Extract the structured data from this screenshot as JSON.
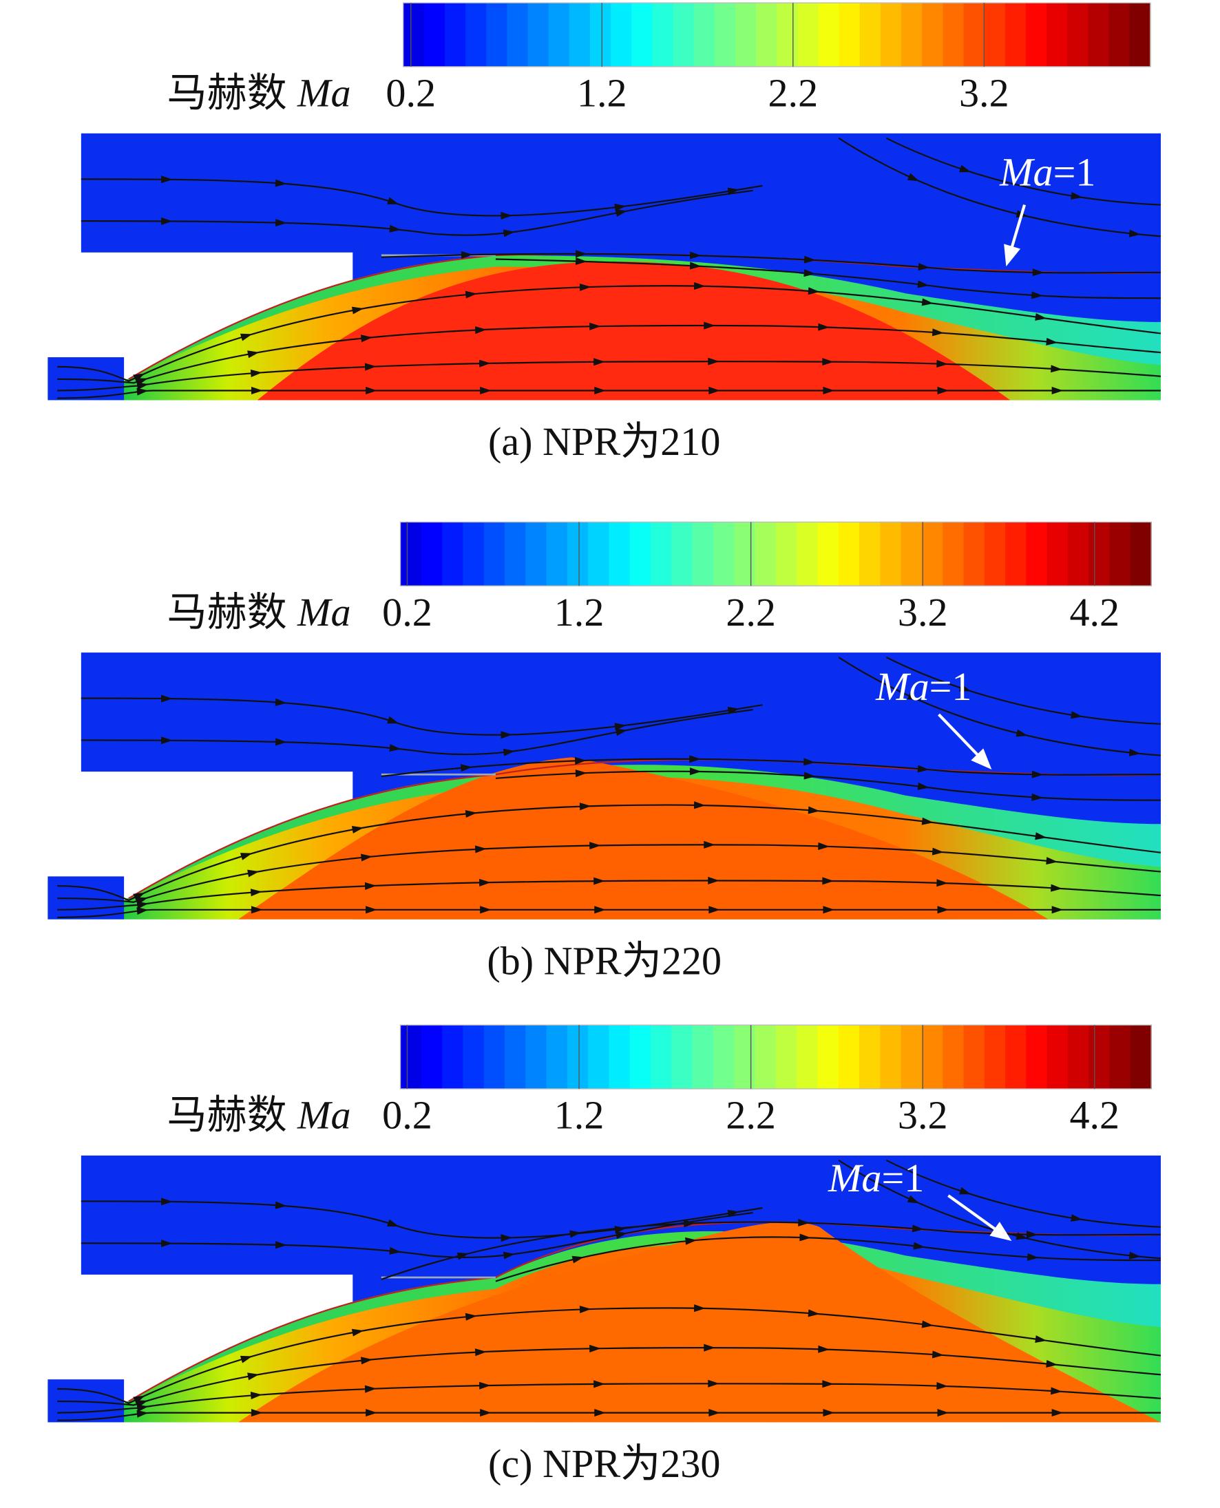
{
  "chart_data": [
    {
      "type": "contour",
      "colorbar_label": "马赫数",
      "colorbar_symbol": "Ma",
      "clim": [
        0.16,
        4.07
      ],
      "cticks": [
        0.2,
        1.2,
        2.2,
        3.2
      ],
      "annotation_symbol": "Ma",
      "annotation": "=1",
      "caption": "(a) NPR为210"
    },
    {
      "type": "contour",
      "colorbar_label": "马赫数",
      "colorbar_symbol": "Ma",
      "clim": [
        0.16,
        4.53
      ],
      "cticks": [
        0.2,
        1.2,
        2.2,
        3.2,
        4.2
      ],
      "annotation_symbol": "Ma",
      "annotation": "=1",
      "caption": "(b) NPR为220"
    },
    {
      "type": "contour",
      "colorbar_label": "马赫数",
      "colorbar_symbol": "Ma",
      "clim": [
        0.16,
        4.53
      ],
      "cticks": [
        0.2,
        1.2,
        2.2,
        3.2,
        4.2
      ],
      "annotation_symbol": "Ma",
      "annotation": "=1",
      "caption": "(c) NPR为230"
    }
  ]
}
